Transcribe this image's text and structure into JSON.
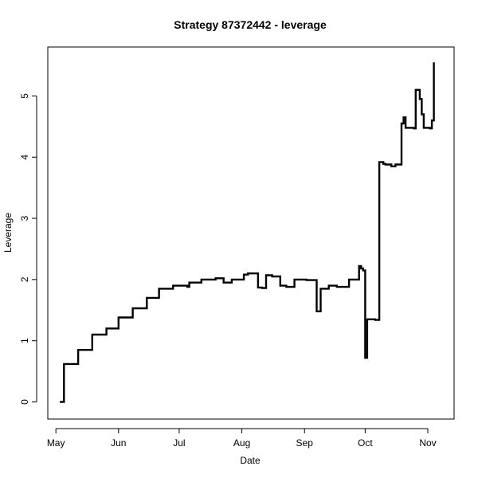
{
  "chart_data": {
    "type": "line",
    "title": "Strategy 87372442 - leverage",
    "xlabel": "Date",
    "ylabel": "Leverage",
    "x_type": "date",
    "xlim": [
      "2021-04-27",
      "2021-11-14"
    ],
    "ylim": [
      -0.28,
      5.8
    ],
    "grid": false,
    "x_ticks": [
      {
        "date": "2021-05-01",
        "label": "May"
      },
      {
        "date": "2021-06-01",
        "label": "Jun"
      },
      {
        "date": "2021-07-01",
        "label": "Jul"
      },
      {
        "date": "2021-08-01",
        "label": "Aug"
      },
      {
        "date": "2021-09-01",
        "label": "Sep"
      },
      {
        "date": "2021-10-01",
        "label": "Oct"
      },
      {
        "date": "2021-11-01",
        "label": "Nov"
      }
    ],
    "y_ticks": [
      0,
      1,
      2,
      3,
      4,
      5
    ],
    "series": [
      {
        "step": true,
        "color": "#000000",
        "x": [
          "2021-05-03",
          "2021-05-05",
          "2021-05-12",
          "2021-05-19",
          "2021-05-26",
          "2021-06-01",
          "2021-06-08",
          "2021-06-15",
          "2021-06-21",
          "2021-06-28",
          "2021-07-05",
          "2021-07-06",
          "2021-07-12",
          "2021-07-19",
          "2021-07-23",
          "2021-07-27",
          "2021-08-02",
          "2021-08-04",
          "2021-08-09",
          "2021-08-11",
          "2021-08-13",
          "2021-08-16",
          "2021-08-20",
          "2021-08-23",
          "2021-08-27",
          "2021-09-02",
          "2021-09-07",
          "2021-09-09",
          "2021-09-13",
          "2021-09-17",
          "2021-09-20",
          "2021-09-23",
          "2021-09-24",
          "2021-09-28",
          "2021-09-29",
          "2021-09-30",
          "2021-10-01",
          "2021-10-02",
          "2021-10-06",
          "2021-10-08",
          "2021-10-10",
          "2021-10-11",
          "2021-10-14",
          "2021-10-16",
          "2021-10-19",
          "2021-10-20",
          "2021-10-21",
          "2021-10-25",
          "2021-10-26",
          "2021-10-28",
          "2021-10-29",
          "2021-10-30",
          "2021-11-02",
          "2021-11-03",
          "2021-11-04"
        ],
        "values": [
          0.0,
          0.62,
          0.85,
          1.1,
          1.2,
          1.38,
          1.53,
          1.7,
          1.85,
          1.9,
          1.88,
          1.95,
          2.0,
          2.02,
          1.95,
          2.0,
          2.08,
          2.1,
          1.87,
          1.86,
          2.07,
          2.05,
          1.9,
          1.88,
          2.0,
          1.99,
          1.48,
          1.85,
          1.9,
          1.88,
          1.88,
          2.0,
          2.0,
          2.22,
          2.18,
          2.15,
          0.72,
          1.35,
          1.34,
          3.92,
          3.89,
          3.88,
          3.85,
          3.88,
          4.55,
          4.65,
          4.48,
          4.47,
          5.1,
          4.95,
          4.7,
          4.48,
          4.47,
          4.6,
          5.55
        ]
      }
    ]
  }
}
